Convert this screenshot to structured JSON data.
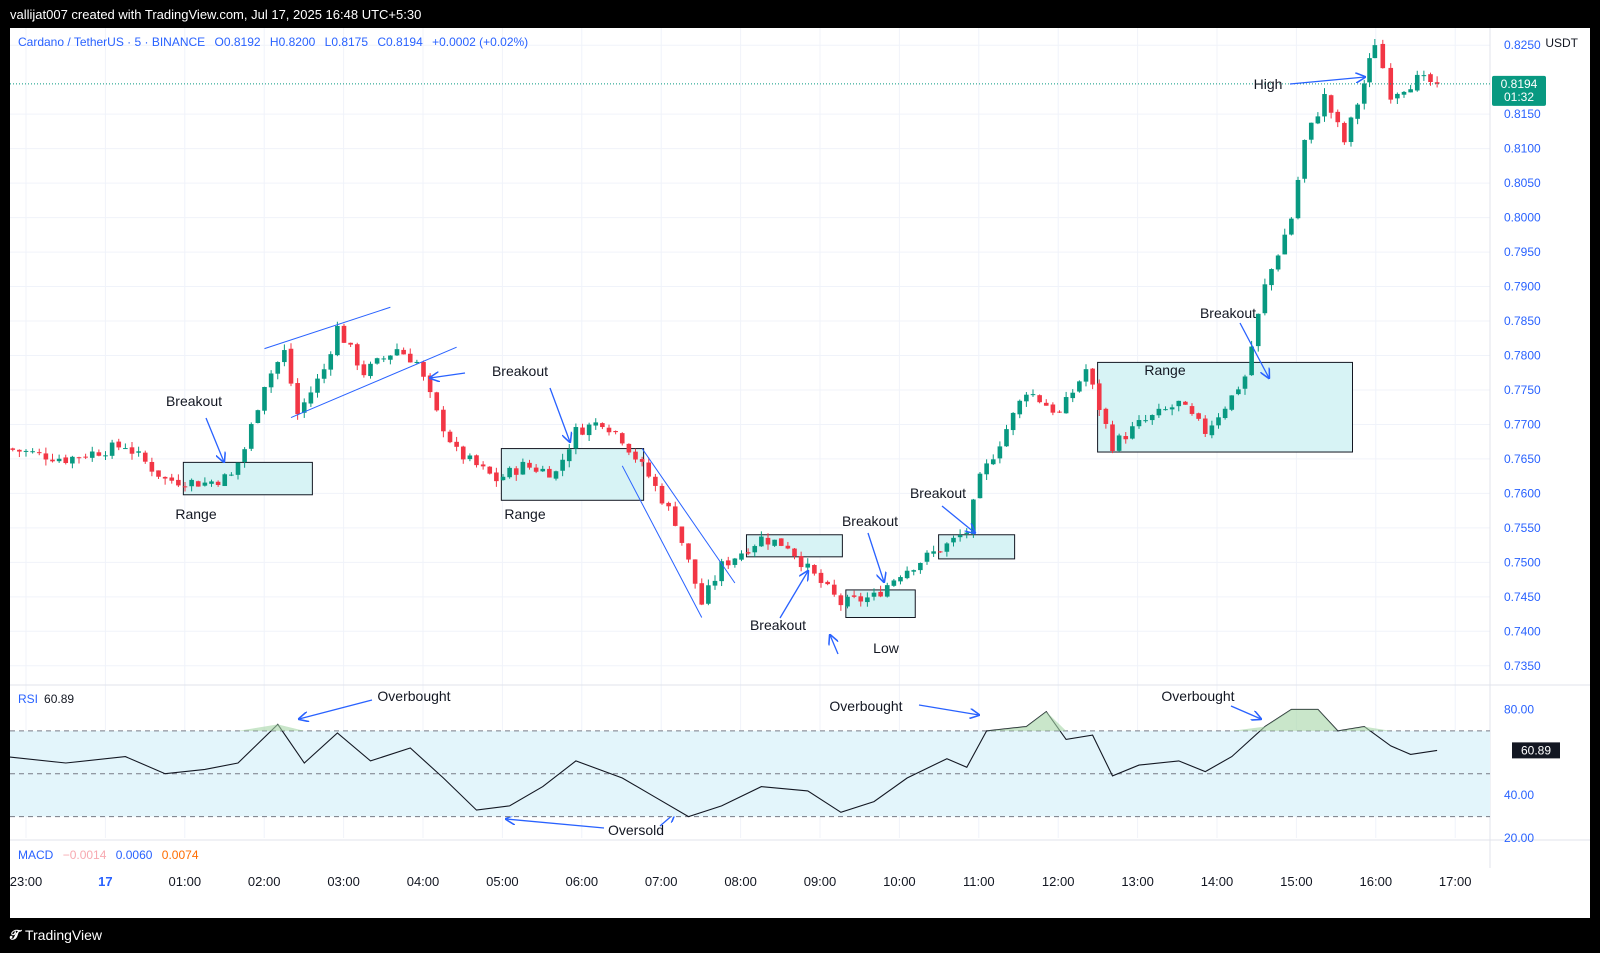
{
  "header": {
    "attribution": "vallijat007 created with TradingView.com, Jul 17, 2025 16:48 UTC+5:30"
  },
  "legend": {
    "symbol": "Cardano / TetherUS · 5 · BINANCE",
    "open": "O0.8192",
    "high": "H0.8200",
    "low": "L0.8175",
    "close": "C0.8194",
    "change": "+0.0002 (+0.02%)",
    "currency": "USDT"
  },
  "price_label": {
    "price": "0.8194",
    "countdown": "01:32"
  },
  "rsi": {
    "label": "RSI",
    "value": "60.89"
  },
  "macd": {
    "label": "MACD",
    "v1": "−0.0014",
    "v2": "0.0060",
    "v3": "0.0074"
  },
  "footer": {
    "brand": "TradingView",
    "logo": "tv-logo-icon"
  },
  "colors": {
    "up": "#089981",
    "down": "#f23645",
    "accent": "#2962ff",
    "box": "#d7f3f5",
    "line": "#089981",
    "annot": "#2962ff"
  },
  "chart_data": [
    {
      "type": "candlestick",
      "title": "Cardano / TetherUS · 5 · BINANCE",
      "ylim": [
        0.7325,
        0.8275
      ],
      "y_ticks": [
        "0.8250",
        "0.8150",
        "0.8100",
        "0.8050",
        "0.8000",
        "0.7950",
        "0.7900",
        "0.7850",
        "0.7800",
        "0.7750",
        "0.7700",
        "0.7650",
        "0.7600",
        "0.7550",
        "0.7500",
        "0.7450",
        "0.7400",
        "0.7350"
      ],
      "x_ticks": [
        "23:00",
        "17",
        "01:00",
        "02:00",
        "03:00",
        "04:00",
        "05:00",
        "06:00",
        "07:00",
        "08:00",
        "09:00",
        "10:00",
        "11:00",
        "12:00",
        "13:00",
        "14:00",
        "15:00",
        "16:00",
        "17:00"
      ],
      "last_price": 0.8194,
      "close_path": [
        {
          "t": "22:45",
          "close": 0.7665
        },
        {
          "t": "23:30",
          "close": 0.765
        },
        {
          "t": "00:15",
          "close": 0.767
        },
        {
          "t": "00:45",
          "close": 0.762
        },
        {
          "t": "01:15",
          "close": 0.7615
        },
        {
          "t": "01:35",
          "close": 0.7625
        },
        {
          "t": "01:45",
          "close": 0.7665
        },
        {
          "t": "02:00",
          "close": 0.776
        },
        {
          "t": "02:15",
          "close": 0.7805
        },
        {
          "t": "02:25",
          "close": 0.7715
        },
        {
          "t": "02:45",
          "close": 0.778
        },
        {
          "t": "02:55",
          "close": 0.784
        },
        {
          "t": "03:15",
          "close": 0.7775
        },
        {
          "t": "03:40",
          "close": 0.781
        },
        {
          "t": "03:55",
          "close": 0.779
        },
        {
          "t": "04:10",
          "close": 0.7715
        },
        {
          "t": "04:25",
          "close": 0.766
        },
        {
          "t": "04:55",
          "close": 0.762
        },
        {
          "t": "05:15",
          "close": 0.764
        },
        {
          "t": "05:40",
          "close": 0.763
        },
        {
          "t": "05:55",
          "close": 0.769
        },
        {
          "t": "06:15",
          "close": 0.7705
        },
        {
          "t": "06:30",
          "close": 0.768
        },
        {
          "t": "06:50",
          "close": 0.7625
        },
        {
          "t": "07:10",
          "close": 0.756
        },
        {
          "t": "07:30",
          "close": 0.744
        },
        {
          "t": "07:45",
          "close": 0.7495
        },
        {
          "t": "08:15",
          "close": 0.7535
        },
        {
          "t": "08:35",
          "close": 0.7525
        },
        {
          "t": "08:50",
          "close": 0.749
        },
        {
          "t": "09:15",
          "close": 0.744
        },
        {
          "t": "09:40",
          "close": 0.745
        },
        {
          "t": "10:00",
          "close": 0.7485
        },
        {
          "t": "10:35",
          "close": 0.7525
        },
        {
          "t": "10:50",
          "close": 0.7545
        },
        {
          "t": "11:00",
          "close": 0.762
        },
        {
          "t": "11:15",
          "close": 0.7675
        },
        {
          "t": "11:35",
          "close": 0.775
        },
        {
          "t": "12:00",
          "close": 0.7715
        },
        {
          "t": "12:20",
          "close": 0.778
        },
        {
          "t": "12:40",
          "close": 0.767
        },
        {
          "t": "13:00",
          "close": 0.77
        },
        {
          "t": "13:30",
          "close": 0.773
        },
        {
          "t": "13:50",
          "close": 0.769
        },
        {
          "t": "14:10",
          "close": 0.774
        },
        {
          "t": "14:20",
          "close": 0.777
        },
        {
          "t": "14:35",
          "close": 0.79
        },
        {
          "t": "14:55",
          "close": 0.8
        },
        {
          "t": "15:05",
          "close": 0.811
        },
        {
          "t": "15:20",
          "close": 0.8175
        },
        {
          "t": "15:35",
          "close": 0.811
        },
        {
          "t": "15:50",
          "close": 0.8195
        },
        {
          "t": "15:58",
          "close": 0.8255
        },
        {
          "t": "16:10",
          "close": 0.818
        },
        {
          "t": "16:30",
          "close": 0.82
        },
        {
          "t": "16:45",
          "close": 0.8194
        }
      ],
      "annotations": [
        "Breakout",
        "Range",
        "Breakout",
        "Range",
        "Breakout",
        "Breakout",
        "Low",
        "Breakout",
        "Range",
        "Breakout",
        "High"
      ]
    },
    {
      "type": "line",
      "name": "RSI",
      "ylim": [
        20,
        90
      ],
      "y_ticks": [
        "80.00",
        "60.89",
        "40.00",
        "20.00"
      ],
      "levels": [
        70,
        50,
        30
      ],
      "last": 60.89,
      "points": [
        {
          "t": "22:45",
          "v": 58
        },
        {
          "t": "23:30",
          "v": 55
        },
        {
          "t": "00:15",
          "v": 58
        },
        {
          "t": "00:45",
          "v": 50
        },
        {
          "t": "01:15",
          "v": 52
        },
        {
          "t": "01:40",
          "v": 55
        },
        {
          "t": "02:10",
          "v": 73
        },
        {
          "t": "02:30",
          "v": 55
        },
        {
          "t": "02:55",
          "v": 69
        },
        {
          "t": "03:20",
          "v": 56
        },
        {
          "t": "03:50",
          "v": 62
        },
        {
          "t": "04:15",
          "v": 48
        },
        {
          "t": "04:40",
          "v": 33
        },
        {
          "t": "05:05",
          "v": 35
        },
        {
          "t": "05:30",
          "v": 44
        },
        {
          "t": "05:55",
          "v": 56
        },
        {
          "t": "06:30",
          "v": 48
        },
        {
          "t": "06:55",
          "v": 39
        },
        {
          "t": "07:20",
          "v": 30
        },
        {
          "t": "07:45",
          "v": 35
        },
        {
          "t": "08:15",
          "v": 44
        },
        {
          "t": "08:50",
          "v": 42
        },
        {
          "t": "09:15",
          "v": 32
        },
        {
          "t": "09:40",
          "v": 37
        },
        {
          "t": "10:05",
          "v": 48
        },
        {
          "t": "10:35",
          "v": 57
        },
        {
          "t": "10:50",
          "v": 53
        },
        {
          "t": "11:05",
          "v": 70
        },
        {
          "t": "11:35",
          "v": 72
        },
        {
          "t": "11:50",
          "v": 79
        },
        {
          "t": "12:05",
          "v": 66
        },
        {
          "t": "12:25",
          "v": 68
        },
        {
          "t": "12:40",
          "v": 49
        },
        {
          "t": "13:00",
          "v": 54
        },
        {
          "t": "13:30",
          "v": 56
        },
        {
          "t": "13:50",
          "v": 51
        },
        {
          "t": "14:10",
          "v": 58
        },
        {
          "t": "14:35",
          "v": 72
        },
        {
          "t": "14:55",
          "v": 80
        },
        {
          "t": "15:15",
          "v": 80
        },
        {
          "t": "15:30",
          "v": 70
        },
        {
          "t": "15:50",
          "v": 72
        },
        {
          "t": "16:10",
          "v": 63
        },
        {
          "t": "16:25",
          "v": 59
        },
        {
          "t": "16:45",
          "v": 60.89
        }
      ],
      "annotations": [
        "Overbought",
        "Oversold",
        "Overbought",
        "Overbought"
      ]
    }
  ]
}
